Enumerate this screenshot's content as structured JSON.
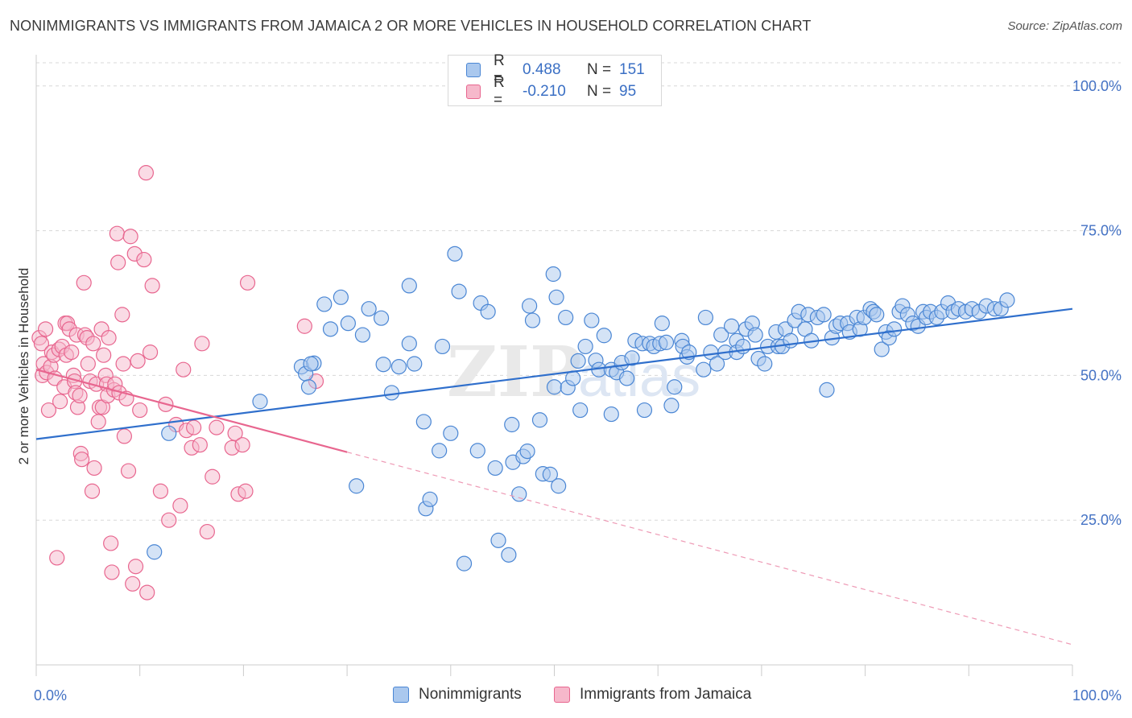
{
  "title": "NONIMMIGRANTS VS IMMIGRANTS FROM JAMAICA 2 OR MORE VEHICLES IN HOUSEHOLD CORRELATION CHART",
  "source": "Source: ZipAtlas.com",
  "colors": {
    "blue": "#4a86d4",
    "blue_fill": "#aac8ee",
    "pink": "#e8668f",
    "pink_fill": "#f6b8cb",
    "axis_label": "#4472c4",
    "grid": "#d8d8d8"
  },
  "legend_top": [
    {
      "r_label": "R =",
      "r_value": "0.488",
      "n_label": "N =",
      "n_value": "151",
      "series": "blue"
    },
    {
      "r_label": "R =",
      "r_value": "-0.210",
      "n_label": "N =",
      "n_value": "95",
      "series": "pink"
    }
  ],
  "legend_bottom": [
    "Nonimmigrants",
    "Immigrants from Jamaica"
  ],
  "chart_data": {
    "type": "scatter",
    "title": "NONIMMIGRANTS VS IMMIGRANTS FROM JAMAICA 2 OR MORE VEHICLES IN HOUSEHOLD CORRELATION CHART",
    "xlabel": "",
    "ylabel": "2 or more Vehicles in Household",
    "xlim": [
      0,
      100
    ],
    "ylim": [
      0,
      104
    ],
    "x_tick_labels": [
      "0.0%",
      "100.0%"
    ],
    "y_ticks": [
      25,
      50,
      75,
      100
    ],
    "y_tick_labels": [
      "25.0%",
      "50.0%",
      "75.0%",
      "100.0%"
    ],
    "grid": true,
    "legend_position": "top-center",
    "watermark": "ZIPatlas",
    "series": [
      {
        "name": "Nonimmigrants",
        "color": "blue",
        "trend": {
          "x": [
            0,
            100
          ],
          "y": [
            39.0,
            61.5
          ],
          "dashed_after": null
        },
        "points": [
          [
            11.4,
            19.5
          ],
          [
            12.8,
            40.0
          ],
          [
            21.6,
            45.5
          ],
          [
            25.6,
            51.5
          ],
          [
            26.0,
            50.3
          ],
          [
            26.3,
            48.0
          ],
          [
            26.8,
            52.1
          ],
          [
            27.8,
            62.3
          ],
          [
            28.4,
            58.0
          ],
          [
            26.5,
            52.0
          ],
          [
            29.4,
            63.5
          ],
          [
            30.1,
            59.0
          ],
          [
            31.5,
            57.0
          ],
          [
            32.1,
            61.5
          ],
          [
            30.9,
            30.9
          ],
          [
            33.3,
            59.9
          ],
          [
            33.5,
            51.9
          ],
          [
            34.3,
            47.0
          ],
          [
            35.0,
            51.5
          ],
          [
            36.0,
            65.5
          ],
          [
            36.0,
            55.5
          ],
          [
            36.5,
            52.0
          ],
          [
            37.4,
            42.0
          ],
          [
            37.6,
            27.0
          ],
          [
            38.0,
            28.6
          ],
          [
            38.9,
            37.0
          ],
          [
            39.2,
            55.0
          ],
          [
            40.0,
            40.0
          ],
          [
            40.4,
            71.0
          ],
          [
            40.8,
            64.5
          ],
          [
            41.3,
            17.5
          ],
          [
            42.6,
            37.0
          ],
          [
            42.9,
            62.5
          ],
          [
            43.6,
            61.0
          ],
          [
            44.3,
            34.0
          ],
          [
            44.6,
            21.5
          ],
          [
            45.6,
            19.0
          ],
          [
            45.9,
            41.5
          ],
          [
            46.0,
            35.0
          ],
          [
            46.6,
            29.5
          ],
          [
            47.0,
            36.0
          ],
          [
            47.4,
            36.9
          ],
          [
            47.6,
            62.0
          ],
          [
            47.9,
            59.5
          ],
          [
            48.6,
            42.3
          ],
          [
            48.9,
            33.0
          ],
          [
            49.6,
            32.9
          ],
          [
            49.9,
            67.5
          ],
          [
            50.0,
            48.0
          ],
          [
            50.2,
            63.5
          ],
          [
            50.4,
            30.9
          ],
          [
            51.1,
            60.0
          ],
          [
            51.3,
            47.9
          ],
          [
            51.8,
            49.5
          ],
          [
            52.3,
            52.5
          ],
          [
            52.5,
            44.0
          ],
          [
            53.0,
            55.0
          ],
          [
            53.6,
            59.5
          ],
          [
            54.0,
            52.6
          ],
          [
            54.3,
            51.0
          ],
          [
            54.8,
            56.9
          ],
          [
            55.5,
            43.3
          ],
          [
            55.5,
            51.0
          ],
          [
            56.0,
            50.5
          ],
          [
            56.5,
            52.2
          ],
          [
            57.0,
            49.5
          ],
          [
            57.5,
            53.0
          ],
          [
            57.8,
            56.0
          ],
          [
            58.5,
            55.5
          ],
          [
            58.7,
            44.0
          ],
          [
            59.2,
            55.5
          ],
          [
            59.6,
            55.0
          ],
          [
            60.2,
            55.5
          ],
          [
            60.4,
            59.0
          ],
          [
            60.8,
            55.7
          ],
          [
            61.3,
            44.8
          ],
          [
            61.6,
            48.0
          ],
          [
            62.3,
            56.0
          ],
          [
            62.4,
            55.0
          ],
          [
            62.8,
            53.2
          ],
          [
            63.0,
            54.0
          ],
          [
            64.4,
            51.0
          ],
          [
            64.6,
            60.0
          ],
          [
            65.1,
            54.0
          ],
          [
            65.7,
            52.0
          ],
          [
            66.1,
            57.0
          ],
          [
            66.5,
            54.0
          ],
          [
            67.1,
            58.5
          ],
          [
            67.6,
            56.0
          ],
          [
            67.6,
            54.0
          ],
          [
            68.2,
            55.0
          ],
          [
            68.5,
            58.0
          ],
          [
            69.1,
            59.0
          ],
          [
            69.4,
            57.0
          ],
          [
            69.7,
            52.9
          ],
          [
            70.3,
            52.0
          ],
          [
            70.6,
            55.0
          ],
          [
            71.4,
            57.5
          ],
          [
            71.6,
            55.0
          ],
          [
            72.0,
            55.0
          ],
          [
            72.3,
            58.0
          ],
          [
            72.8,
            56.0
          ],
          [
            73.2,
            59.5
          ],
          [
            73.6,
            61.0
          ],
          [
            74.2,
            58.0
          ],
          [
            74.5,
            60.5
          ],
          [
            74.8,
            56.0
          ],
          [
            75.4,
            60.0
          ],
          [
            76.0,
            60.5
          ],
          [
            76.3,
            47.5
          ],
          [
            76.8,
            56.5
          ],
          [
            77.2,
            58.5
          ],
          [
            77.6,
            59.0
          ],
          [
            78.3,
            59.0
          ],
          [
            78.5,
            57.5
          ],
          [
            79.2,
            60.0
          ],
          [
            79.5,
            58.0
          ],
          [
            79.9,
            60.0
          ],
          [
            80.5,
            61.5
          ],
          [
            80.8,
            61.0
          ],
          [
            81.1,
            60.5
          ],
          [
            81.6,
            54.5
          ],
          [
            82.0,
            57.5
          ],
          [
            82.3,
            56.5
          ],
          [
            82.8,
            58.0
          ],
          [
            83.3,
            61.0
          ],
          [
            83.6,
            62.0
          ],
          [
            84.1,
            60.5
          ],
          [
            84.6,
            59.0
          ],
          [
            85.1,
            58.5
          ],
          [
            85.6,
            61.0
          ],
          [
            85.9,
            60.0
          ],
          [
            86.3,
            61.0
          ],
          [
            86.9,
            60.0
          ],
          [
            87.4,
            61.0
          ],
          [
            88.0,
            62.5
          ],
          [
            88.5,
            61.0
          ],
          [
            89.0,
            61.5
          ],
          [
            89.7,
            61.0
          ],
          [
            90.3,
            61.5
          ],
          [
            91.0,
            61.0
          ],
          [
            91.7,
            62.0
          ],
          [
            92.5,
            61.5
          ],
          [
            93.1,
            61.5
          ],
          [
            93.7,
            63.0
          ]
        ]
      },
      {
        "name": "Immigrants from Jamaica",
        "color": "pink",
        "trend": {
          "x": [
            0,
            100
          ],
          "y": [
            51.0,
            3.5
          ],
          "dashed_after": 30
        },
        "points": [
          [
            0.3,
            56.5
          ],
          [
            0.5,
            55.5
          ],
          [
            0.6,
            50.0
          ],
          [
            0.7,
            52.0
          ],
          [
            0.9,
            58.0
          ],
          [
            1.0,
            50.5
          ],
          [
            1.2,
            44.0
          ],
          [
            1.4,
            51.5
          ],
          [
            1.5,
            54.0
          ],
          [
            1.7,
            53.5
          ],
          [
            1.8,
            49.5
          ],
          [
            2.0,
            18.5
          ],
          [
            2.2,
            54.5
          ],
          [
            2.3,
            45.5
          ],
          [
            2.5,
            55.0
          ],
          [
            2.7,
            48.0
          ],
          [
            2.8,
            59.0
          ],
          [
            2.9,
            53.5
          ],
          [
            3.0,
            59.0
          ],
          [
            3.2,
            58.0
          ],
          [
            3.4,
            54.0
          ],
          [
            3.6,
            50.0
          ],
          [
            3.7,
            49.0
          ],
          [
            3.8,
            47.0
          ],
          [
            3.9,
            57.0
          ],
          [
            4.0,
            44.5
          ],
          [
            4.2,
            46.5
          ],
          [
            4.3,
            36.5
          ],
          [
            4.4,
            35.5
          ],
          [
            4.6,
            66.0
          ],
          [
            4.7,
            57.0
          ],
          [
            4.9,
            56.5
          ],
          [
            5.0,
            52.0
          ],
          [
            5.2,
            49.0
          ],
          [
            5.4,
            30.0
          ],
          [
            5.5,
            55.5
          ],
          [
            5.6,
            34.0
          ],
          [
            5.8,
            48.5
          ],
          [
            6.0,
            42.0
          ],
          [
            6.1,
            44.5
          ],
          [
            6.3,
            58.0
          ],
          [
            6.4,
            44.5
          ],
          [
            6.5,
            53.5
          ],
          [
            6.7,
            50.0
          ],
          [
            6.8,
            48.5
          ],
          [
            6.9,
            46.5
          ],
          [
            7.0,
            56.5
          ],
          [
            7.2,
            21.0
          ],
          [
            7.3,
            16.0
          ],
          [
            7.5,
            47.5
          ],
          [
            7.6,
            48.5
          ],
          [
            7.8,
            74.5
          ],
          [
            7.9,
            69.5
          ],
          [
            8.0,
            47.0
          ],
          [
            8.3,
            60.5
          ],
          [
            8.4,
            52.0
          ],
          [
            8.5,
            39.5
          ],
          [
            8.7,
            46.0
          ],
          [
            8.9,
            33.5
          ],
          [
            9.1,
            74.0
          ],
          [
            9.3,
            14.0
          ],
          [
            9.5,
            71.0
          ],
          [
            9.6,
            17.0
          ],
          [
            9.8,
            52.5
          ],
          [
            10.0,
            44.0
          ],
          [
            10.4,
            70.0
          ],
          [
            10.6,
            85.0
          ],
          [
            10.7,
            12.5
          ],
          [
            11.0,
            54.0
          ],
          [
            11.2,
            65.5
          ],
          [
            12.0,
            30.0
          ],
          [
            12.5,
            45.0
          ],
          [
            12.8,
            25.0
          ],
          [
            13.5,
            41.5
          ],
          [
            13.9,
            27.5
          ],
          [
            14.2,
            51.0
          ],
          [
            14.5,
            40.5
          ],
          [
            15.0,
            37.5
          ],
          [
            15.2,
            41.0
          ],
          [
            15.8,
            38.0
          ],
          [
            16.0,
            55.5
          ],
          [
            16.5,
            23.0
          ],
          [
            17.0,
            32.5
          ],
          [
            17.4,
            41.0
          ],
          [
            18.9,
            37.5
          ],
          [
            19.2,
            40.0
          ],
          [
            19.5,
            29.5
          ],
          [
            19.9,
            38.0
          ],
          [
            20.2,
            30.0
          ],
          [
            20.4,
            66.0
          ],
          [
            25.9,
            58.5
          ],
          [
            27.0,
            49.0
          ]
        ]
      }
    ]
  }
}
